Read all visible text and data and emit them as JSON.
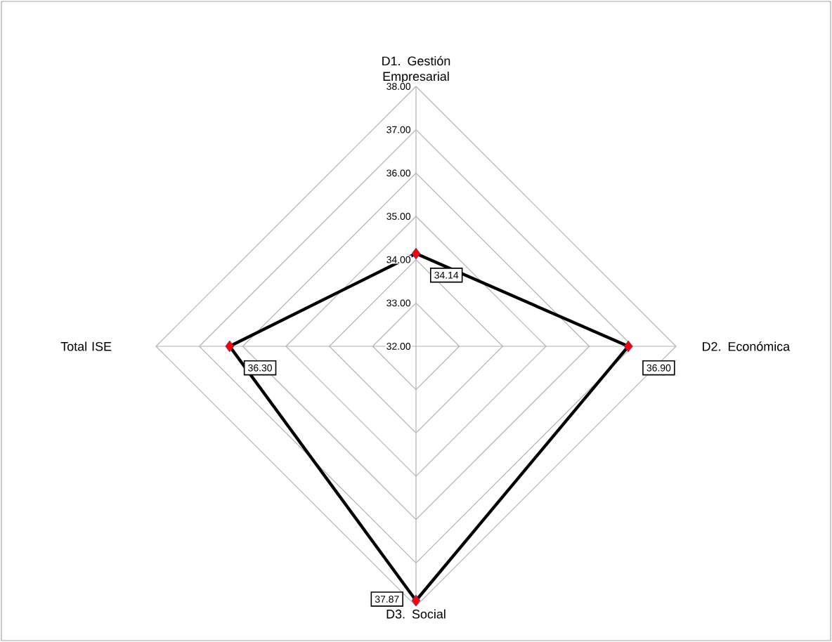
{
  "chart_data": {
    "type": "radar",
    "categories": [
      "D1. Gestión Empresarial",
      "D2. Económica",
      "D3. Social",
      "Total ISE"
    ],
    "ylim": [
      32,
      38
    ],
    "yticks": [
      {
        "value": 32,
        "label": "32.00"
      },
      {
        "value": 33,
        "label": "33.00"
      },
      {
        "value": 34,
        "label": "34.00"
      },
      {
        "value": 35,
        "label": "35.00"
      },
      {
        "value": 36,
        "label": "36.00"
      },
      {
        "value": 37,
        "label": "37.00"
      },
      {
        "value": 38,
        "label": "38.00"
      }
    ],
    "series": [
      {
        "color": "#000000",
        "colors": [
          "#ff0000",
          "#ff0000",
          "#ff0000",
          "#ff0000"
        ],
        "values": [
          34.14,
          36.9,
          37.87,
          36.3
        ],
        "value_labels": [
          "34.14",
          "36.90",
          "37.87",
          "36.30"
        ]
      }
    ],
    "marker": "diamond"
  }
}
